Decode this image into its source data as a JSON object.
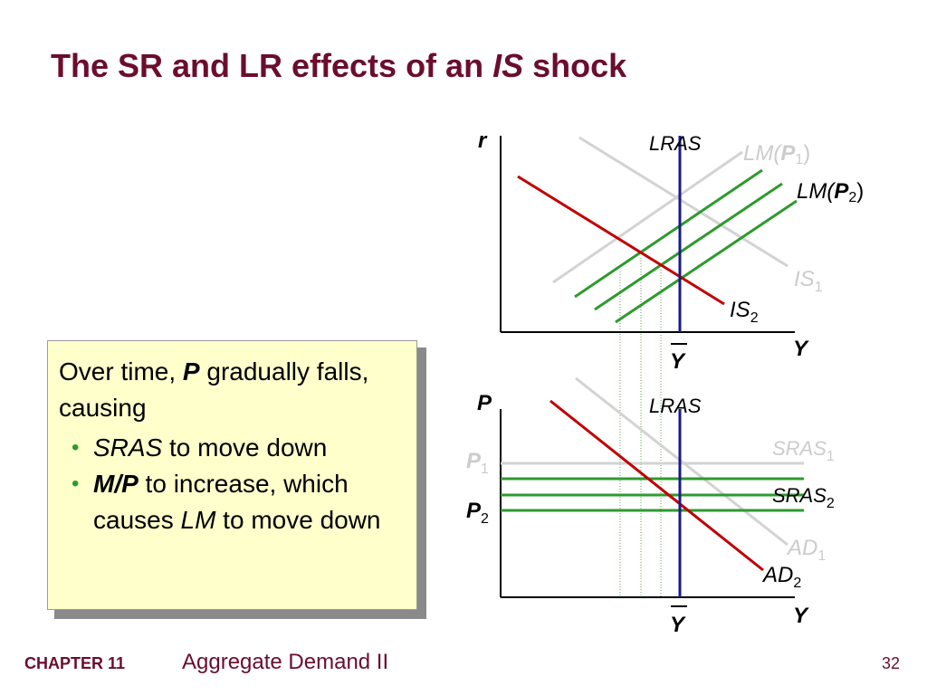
{
  "slide": {
    "title_prefix": "The SR and LR effects of an ",
    "title_italic": "IS",
    "title_suffix": " shock",
    "footer_chapter": "CHAPTER 11",
    "footer_subject": "Aggregate Demand II",
    "page_number": "32"
  },
  "callout": {
    "line1_a": "Over time, ",
    "line1_b": "P",
    "line1_c": " gradually falls, causing",
    "bullet1_a": "SRAS",
    "bullet1_b": "  to move down",
    "bullet2_a": "M/P",
    "bullet2_b": "  to increase, which causes ",
    "bullet2_c": "LM",
    "bullet2_d": " to move down"
  },
  "top_graph": {
    "y_axis_label": "r",
    "x_axis_label": "Y",
    "lras_label": "LRAS",
    "lm1_label": "LM(",
    "lm1_p": "P",
    "lm1_sub": "1",
    "lm_close": ")",
    "lm2_label": "LM(",
    "lm2_p": "P",
    "lm2_sub": "2",
    "is1_label": "IS",
    "is1_sub": "1",
    "is2_label": "IS",
    "is2_sub": "2",
    "ybar_label": "Y"
  },
  "bottom_graph": {
    "y_axis_label": "P",
    "x_axis_label": "Y",
    "lras_label": "LRAS",
    "sras1_label": "SRAS",
    "sras1_sub": "1",
    "sras2_label": "SRAS",
    "sras2_sub": "2",
    "ad1_label": "AD",
    "ad1_sub": "1",
    "ad2_label": "AD",
    "ad2_sub": "2",
    "p1_label": "P",
    "p1_sub": "1",
    "p2_label": "P",
    "p2_sub": "2",
    "ybar_label": "Y"
  },
  "colors": {
    "title": "#6b0d2e",
    "axis": "#000000",
    "lras": "#1a1a8c",
    "old_curve": "#d3d3d3",
    "new_lm_sras": "#2e9a2e",
    "is_ad_shifted": "#c00000",
    "callout_bg": "#ffffcc",
    "guide": "#5aa05a"
  }
}
